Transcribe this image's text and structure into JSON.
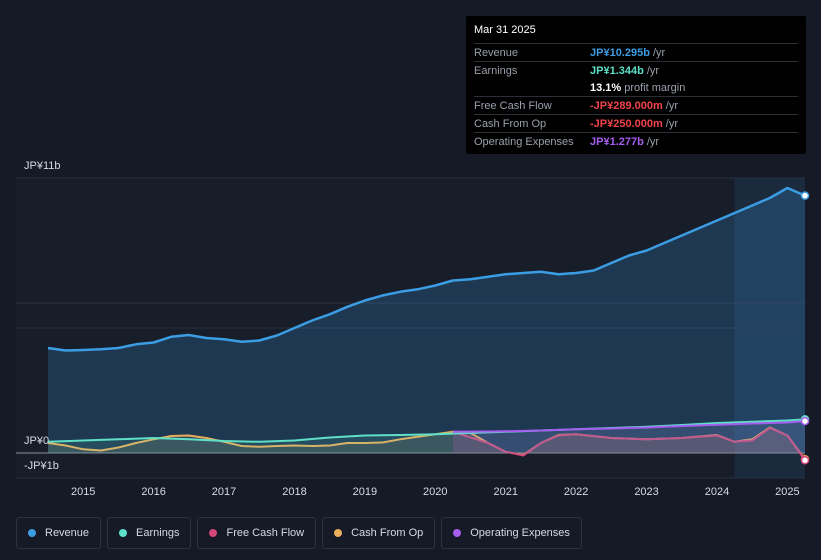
{
  "tooltip": {
    "date": "Mar 31 2025",
    "rows": [
      {
        "label": "Revenue",
        "value": "JP¥10.295b",
        "unit": "/yr",
        "color": "#3b9de3"
      },
      {
        "label": "Earnings",
        "value": "JP¥1.344b",
        "unit": "/yr",
        "color": "#5ee0c8"
      },
      {
        "label": "",
        "value": "13.1%",
        "unit": "profit margin",
        "color": "#ffffff"
      },
      {
        "label": "Free Cash Flow",
        "value": "-JP¥289.000m",
        "unit": "/yr",
        "color": "#f0444b"
      },
      {
        "label": "Cash From Op",
        "value": "-JP¥250.000m",
        "unit": "/yr",
        "color": "#f0444b"
      },
      {
        "label": "Operating Expenses",
        "value": "JP¥1.277b",
        "unit": "/yr",
        "color": "#a65ef0"
      }
    ]
  },
  "legend": [
    {
      "label": "Revenue",
      "color": "#3b9de3"
    },
    {
      "label": "Earnings",
      "color": "#5ee0c8"
    },
    {
      "label": "Free Cash Flow",
      "color": "#d4477a"
    },
    {
      "label": "Cash From Op",
      "color": "#e8ae5b"
    },
    {
      "label": "Operating Expenses",
      "color": "#a65ef0"
    }
  ],
  "chart_data": {
    "type": "line",
    "title": "",
    "y_top_label": "JP¥11b",
    "y_zero_label": "JP¥0",
    "y_bottom_label": "-JP¥1b",
    "ylim": [
      -1,
      11
    ],
    "xlim": [
      2014.5,
      2025.25
    ],
    "x_ticks": [
      2015,
      2016,
      2017,
      2018,
      2019,
      2020,
      2021,
      2022,
      2023,
      2024,
      2025
    ],
    "highlight_from": 2024.25,
    "series": [
      {
        "name": "Revenue",
        "color": "#3b9de3",
        "fill": true,
        "points": [
          [
            2014.5,
            4.2
          ],
          [
            2014.75,
            4.1
          ],
          [
            2015,
            4.12
          ],
          [
            2015.25,
            4.15
          ],
          [
            2015.5,
            4.2
          ],
          [
            2015.75,
            4.35
          ],
          [
            2016,
            4.42
          ],
          [
            2016.25,
            4.65
          ],
          [
            2016.5,
            4.72
          ],
          [
            2016.75,
            4.6
          ],
          [
            2017,
            4.55
          ],
          [
            2017.25,
            4.45
          ],
          [
            2017.5,
            4.5
          ],
          [
            2017.75,
            4.7
          ],
          [
            2018,
            5.0
          ],
          [
            2018.25,
            5.3
          ],
          [
            2018.5,
            5.55
          ],
          [
            2018.75,
            5.85
          ],
          [
            2019,
            6.1
          ],
          [
            2019.25,
            6.3
          ],
          [
            2019.5,
            6.45
          ],
          [
            2019.75,
            6.55
          ],
          [
            2020,
            6.7
          ],
          [
            2020.25,
            6.9
          ],
          [
            2020.5,
            6.95
          ],
          [
            2020.75,
            7.05
          ],
          [
            2021,
            7.15
          ],
          [
            2021.25,
            7.2
          ],
          [
            2021.5,
            7.25
          ],
          [
            2021.75,
            7.15
          ],
          [
            2022,
            7.2
          ],
          [
            2022.25,
            7.3
          ],
          [
            2022.5,
            7.6
          ],
          [
            2022.75,
            7.9
          ],
          [
            2023,
            8.1
          ],
          [
            2023.25,
            8.4
          ],
          [
            2023.5,
            8.7
          ],
          [
            2023.75,
            9.0
          ],
          [
            2024,
            9.3
          ],
          [
            2024.25,
            9.6
          ],
          [
            2024.5,
            9.9
          ],
          [
            2024.75,
            10.2
          ],
          [
            2025,
            10.6
          ],
          [
            2025.25,
            10.295
          ]
        ]
      },
      {
        "name": "Earnings",
        "color": "#5ee0c8",
        "fill": false,
        "points": [
          [
            2014.5,
            0.45
          ],
          [
            2015,
            0.5
          ],
          [
            2015.5,
            0.55
          ],
          [
            2016,
            0.6
          ],
          [
            2016.5,
            0.55
          ],
          [
            2017,
            0.48
          ],
          [
            2017.5,
            0.45
          ],
          [
            2018,
            0.5
          ],
          [
            2018.5,
            0.62
          ],
          [
            2019,
            0.7
          ],
          [
            2019.5,
            0.72
          ],
          [
            2020,
            0.75
          ],
          [
            2020.5,
            0.8
          ],
          [
            2021,
            0.85
          ],
          [
            2021.5,
            0.9
          ],
          [
            2022,
            0.95
          ],
          [
            2022.5,
            1.0
          ],
          [
            2023,
            1.05
          ],
          [
            2023.5,
            1.12
          ],
          [
            2024,
            1.2
          ],
          [
            2024.5,
            1.25
          ],
          [
            2025,
            1.3
          ],
          [
            2025.25,
            1.344
          ]
        ]
      },
      {
        "name": "Operating Expenses",
        "color": "#a65ef0",
        "fill": false,
        "points": [
          [
            2020.25,
            0.85
          ],
          [
            2020.75,
            0.86
          ],
          [
            2021,
            0.87
          ],
          [
            2021.5,
            0.9
          ],
          [
            2022,
            0.95
          ],
          [
            2022.5,
            0.98
          ],
          [
            2023,
            1.02
          ],
          [
            2023.5,
            1.08
          ],
          [
            2024,
            1.13
          ],
          [
            2024.5,
            1.18
          ],
          [
            2025,
            1.22
          ],
          [
            2025.25,
            1.277
          ]
        ]
      },
      {
        "name": "Free Cash Flow",
        "color": "#d4477a",
        "fill": false,
        "points": [
          [
            2020.25,
            0.85
          ],
          [
            2020.75,
            0.4
          ],
          [
            2021,
            0.05
          ],
          [
            2021.25,
            -0.1
          ],
          [
            2021.5,
            0.4
          ],
          [
            2021.75,
            0.7
          ],
          [
            2022,
            0.75
          ],
          [
            2022.5,
            0.6
          ],
          [
            2023,
            0.55
          ],
          [
            2023.5,
            0.6
          ],
          [
            2024,
            0.7
          ],
          [
            2024.25,
            0.45
          ],
          [
            2024.5,
            0.5
          ],
          [
            2024.75,
            1.0
          ],
          [
            2025,
            0.7
          ],
          [
            2025.25,
            -0.289
          ]
        ]
      },
      {
        "name": "Cash From Op",
        "color": "#e8ae5b",
        "fill": false,
        "points": [
          [
            2014.5,
            0.4
          ],
          [
            2014.75,
            0.3
          ],
          [
            2015,
            0.15
          ],
          [
            2015.25,
            0.1
          ],
          [
            2015.5,
            0.22
          ],
          [
            2015.75,
            0.4
          ],
          [
            2016,
            0.55
          ],
          [
            2016.25,
            0.68
          ],
          [
            2016.5,
            0.7
          ],
          [
            2016.75,
            0.6
          ],
          [
            2017,
            0.45
          ],
          [
            2017.25,
            0.28
          ],
          [
            2017.5,
            0.25
          ],
          [
            2017.75,
            0.28
          ],
          [
            2018,
            0.3
          ],
          [
            2018.25,
            0.28
          ],
          [
            2018.5,
            0.3
          ],
          [
            2018.75,
            0.4
          ],
          [
            2019,
            0.4
          ],
          [
            2019.25,
            0.42
          ],
          [
            2019.5,
            0.55
          ],
          [
            2019.75,
            0.65
          ],
          [
            2020,
            0.75
          ],
          [
            2020.25,
            0.85
          ],
          [
            2020.5,
            0.8
          ],
          [
            2020.75,
            0.4
          ],
          [
            2021,
            0.05
          ],
          [
            2021.25,
            -0.08
          ],
          [
            2021.5,
            0.4
          ],
          [
            2021.75,
            0.72
          ],
          [
            2022,
            0.75
          ],
          [
            2022.5,
            0.6
          ],
          [
            2023,
            0.55
          ],
          [
            2023.5,
            0.6
          ],
          [
            2024,
            0.72
          ],
          [
            2024.25,
            0.45
          ],
          [
            2024.5,
            0.55
          ],
          [
            2024.75,
            1.02
          ],
          [
            2025,
            0.7
          ],
          [
            2025.25,
            -0.25
          ]
        ]
      }
    ]
  }
}
